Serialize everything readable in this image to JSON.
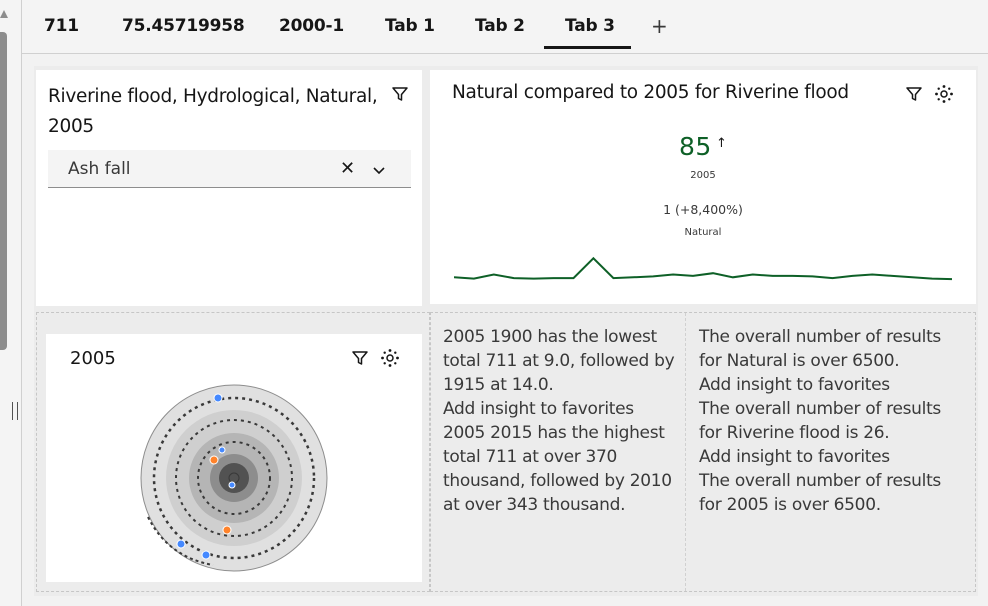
{
  "tabs": [
    {
      "label": "711"
    },
    {
      "label": "75.45719958"
    },
    {
      "label": "2000-1"
    },
    {
      "label": "Tab 1"
    },
    {
      "label": "Tab 2"
    },
    {
      "label": "Tab 3",
      "active": true
    }
  ],
  "add_tab_label": "+",
  "filter_widget": {
    "title": "Riverine flood, Hydrological, Natural, 2005",
    "dropdown_value": "Ash fall",
    "clear_label": "✕"
  },
  "kpi_widget": {
    "title": "Natural compared to 2005 for Riverine flood",
    "value": "85",
    "arrow": "↑",
    "value_label": "2005",
    "compare": "1 (+8,400%)",
    "compare_label": "Natural",
    "sparkline": [
      0.25,
      0.2,
      0.35,
      0.22,
      0.2,
      0.22,
      0.22,
      0.95,
      0.22,
      0.25,
      0.28,
      0.35,
      0.3,
      0.4,
      0.25,
      0.35,
      0.3,
      0.3,
      0.28,
      0.22,
      0.3,
      0.35,
      0.3,
      0.25,
      0.2,
      0.18
    ]
  },
  "cluster_widget": {
    "title": "2005"
  },
  "insights": {
    "left": [
      "2005 1900 has the lowest total 711 at 9.0, followed by 1915 at 14.0.",
      "Add insight to favorites",
      "2005 2015 has the highest total 711 at over 370 thousand, followed by 2010 at over 343 thousand."
    ],
    "right": [
      "The overall number of results for Natural is over 6500.",
      "Add insight to favorites",
      "The overall number of results for Riverine flood is 26.",
      "Add insight to favorites",
      "The overall number of results for 2005 is over 6500."
    ]
  },
  "colors": {
    "accent": "#161616",
    "kpi_green": "#0e6027",
    "blue": "#4589ff",
    "orange": "#ff832b"
  }
}
